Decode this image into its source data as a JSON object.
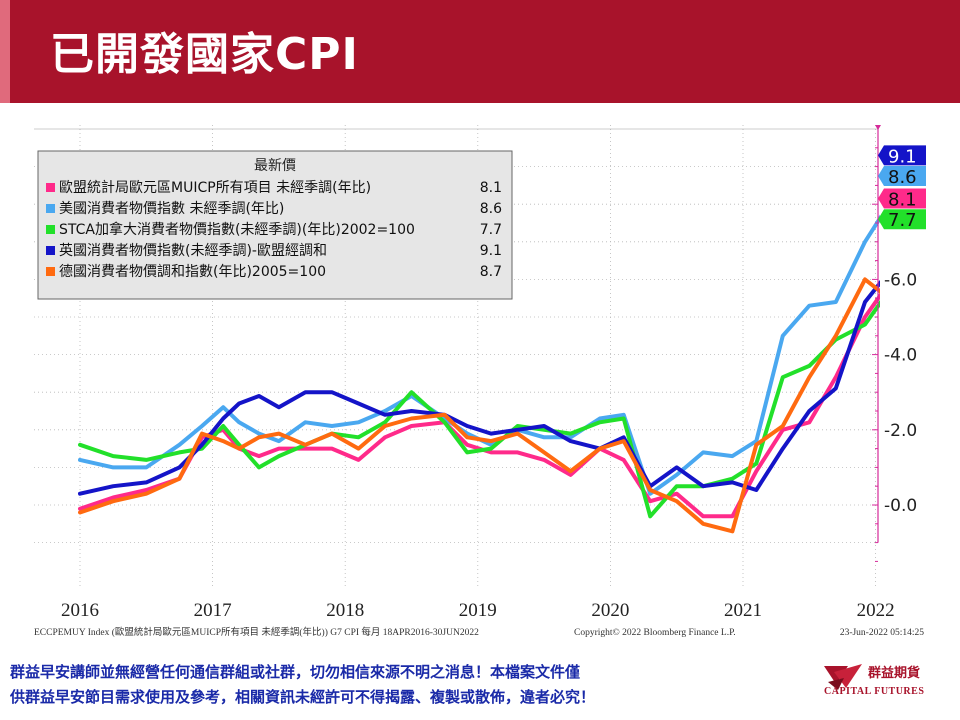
{
  "page": {
    "title": "已開發國家CPI",
    "header_color": "#a8132b"
  },
  "footer": {
    "line1": "群益早安講師並無經營任何通信群組或社群，切勿相信來源不明之消息！本檔案文件僅",
    "line2": "供群益早安節目需求使用及參考，相關資訊未經許可不得揭露、複製或散佈，違者必究！",
    "text_color": "#1a2aa8"
  },
  "logo": {
    "name": "群益期貨",
    "english": "CAPITAL FUTURES",
    "icon": "capital-futures-logo-icon"
  },
  "chart_data": {
    "type": "line",
    "legend_title": "最新價",
    "legend_position": "top-left",
    "grid": true,
    "ylim": [
      -1.8,
      10.0
    ],
    "yticks": [
      0.0,
      2.0,
      4.0,
      6.0
    ],
    "ytick_labels": [
      "0.0",
      "2.0",
      "4.0",
      "6.0"
    ],
    "x_range": [
      2015.9,
      2022.5
    ],
    "xticks": [
      2016,
      2017,
      2018,
      2019,
      2020,
      2021,
      2022
    ],
    "xtick_labels": [
      "2016",
      "2017",
      "2018",
      "2019",
      "2020",
      "2021",
      "2022"
    ],
    "source_left": "ECCPEMUY Index (歐盟統計局歐元區MUICP所有項目 未經季調(年比)) G7 CPI  每月 18APR2016-30JUN2022",
    "source_center": "Copyright© 2022 Bloomberg Finance L.P.",
    "source_right": "23-Jun-2022 05:14:25",
    "series": [
      {
        "name": "歐盟統計局歐元區MUICP所有項目 未經季調(年比)",
        "last": "8.1",
        "color": "#ff2a8a",
        "x": [
          2016.0,
          2016.25,
          2016.5,
          2016.75,
          2016.92,
          2017.08,
          2017.2,
          2017.35,
          2017.5,
          2017.7,
          2017.9,
          2018.1,
          2018.3,
          2018.5,
          2018.75,
          2018.92,
          2019.1,
          2019.3,
          2019.5,
          2019.7,
          2019.92,
          2020.1,
          2020.3,
          2020.5,
          2020.7,
          2020.92,
          2021.1,
          2021.3,
          2021.5,
          2021.7,
          2021.92,
          2022.1,
          2022.3,
          2022.42
        ],
        "y": [
          -0.1,
          0.2,
          0.4,
          0.7,
          1.8,
          2.0,
          1.5,
          1.3,
          1.5,
          1.5,
          1.5,
          1.2,
          1.8,
          2.1,
          2.2,
          1.6,
          1.4,
          1.4,
          1.2,
          0.8,
          1.5,
          1.2,
          0.1,
          0.3,
          -0.3,
          -0.3,
          0.9,
          2.0,
          2.2,
          3.4,
          5.0,
          5.9,
          7.4,
          8.1
        ]
      },
      {
        "name": "美國消費者物價指數 未經季調(年比)",
        "last": "8.6",
        "color": "#4aa8f0",
        "x": [
          2016.0,
          2016.25,
          2016.5,
          2016.75,
          2016.92,
          2017.08,
          2017.2,
          2017.35,
          2017.5,
          2017.7,
          2017.9,
          2018.1,
          2018.3,
          2018.5,
          2018.75,
          2018.92,
          2019.1,
          2019.3,
          2019.5,
          2019.7,
          2019.92,
          2020.1,
          2020.3,
          2020.5,
          2020.7,
          2020.92,
          2021.1,
          2021.3,
          2021.5,
          2021.7,
          2021.92,
          2022.1,
          2022.3,
          2022.42
        ],
        "y": [
          1.2,
          1.0,
          1.0,
          1.6,
          2.1,
          2.6,
          2.2,
          1.9,
          1.7,
          2.2,
          2.1,
          2.2,
          2.5,
          2.9,
          2.3,
          1.9,
          1.6,
          2.0,
          1.8,
          1.8,
          2.3,
          2.4,
          0.3,
          0.8,
          1.4,
          1.3,
          1.7,
          4.5,
          5.3,
          5.4,
          7.0,
          8.0,
          8.3,
          8.6
        ]
      },
      {
        "name": "STCA加拿大消費者物價指數(未經季調)(年比)2002=100",
        "last": "7.7",
        "color": "#22e02a",
        "x": [
          2016.0,
          2016.25,
          2016.5,
          2016.75,
          2016.92,
          2017.08,
          2017.2,
          2017.35,
          2017.5,
          2017.7,
          2017.9,
          2018.1,
          2018.3,
          2018.5,
          2018.75,
          2018.92,
          2019.1,
          2019.3,
          2019.5,
          2019.7,
          2019.92,
          2020.1,
          2020.3,
          2020.5,
          2020.7,
          2020.92,
          2021.1,
          2021.3,
          2021.5,
          2021.7,
          2021.92,
          2022.1,
          2022.3,
          2022.42
        ],
        "y": [
          1.6,
          1.3,
          1.2,
          1.4,
          1.5,
          2.1,
          1.6,
          1.0,
          1.3,
          1.6,
          1.9,
          1.8,
          2.2,
          3.0,
          2.2,
          1.4,
          1.5,
          2.1,
          2.0,
          1.9,
          2.2,
          2.3,
          -0.3,
          0.5,
          0.5,
          0.7,
          1.1,
          3.4,
          3.7,
          4.4,
          4.8,
          5.7,
          6.8,
          7.7
        ]
      },
      {
        "name": "英國消費者物價指數(未經季調)-歐盟經調和",
        "last": "9.1",
        "color": "#1414c8",
        "x": [
          2016.0,
          2016.25,
          2016.5,
          2016.75,
          2016.92,
          2017.08,
          2017.2,
          2017.35,
          2017.5,
          2017.7,
          2017.9,
          2018.1,
          2018.3,
          2018.5,
          2018.75,
          2018.92,
          2019.1,
          2019.3,
          2019.5,
          2019.7,
          2019.92,
          2020.1,
          2020.3,
          2020.5,
          2020.7,
          2020.92,
          2021.1,
          2021.3,
          2021.5,
          2021.7,
          2021.92,
          2022.1,
          2022.3,
          2022.42
        ],
        "y": [
          0.3,
          0.5,
          0.6,
          1.0,
          1.6,
          2.3,
          2.7,
          2.9,
          2.6,
          3.0,
          3.0,
          2.7,
          2.4,
          2.5,
          2.4,
          2.1,
          1.9,
          2.0,
          2.1,
          1.7,
          1.5,
          1.8,
          0.5,
          1.0,
          0.5,
          0.6,
          0.4,
          1.5,
          2.5,
          3.1,
          5.4,
          6.2,
          9.0,
          9.1
        ]
      },
      {
        "name": "德國消費者物價調和指數(年比)2005=100",
        "last": "8.7",
        "color": "#ff6a10",
        "x": [
          2016.0,
          2016.25,
          2016.5,
          2016.75,
          2016.92,
          2017.08,
          2017.2,
          2017.35,
          2017.5,
          2017.7,
          2017.9,
          2018.1,
          2018.3,
          2018.5,
          2018.75,
          2018.92,
          2019.1,
          2019.3,
          2019.5,
          2019.7,
          2019.92,
          2020.1,
          2020.3,
          2020.5,
          2020.7,
          2020.92,
          2021.1,
          2021.3,
          2021.5,
          2021.7,
          2021.92,
          2022.1,
          2022.3,
          2022.42
        ],
        "y": [
          -0.2,
          0.1,
          0.3,
          0.7,
          1.9,
          1.7,
          1.5,
          1.8,
          1.9,
          1.6,
          1.9,
          1.5,
          2.1,
          2.3,
          2.4,
          1.8,
          1.7,
          1.9,
          1.4,
          0.9,
          1.5,
          1.7,
          0.4,
          0.1,
          -0.5,
          -0.7,
          1.6,
          2.1,
          3.4,
          4.5,
          6.0,
          5.5,
          8.1,
          8.7
        ]
      }
    ]
  }
}
